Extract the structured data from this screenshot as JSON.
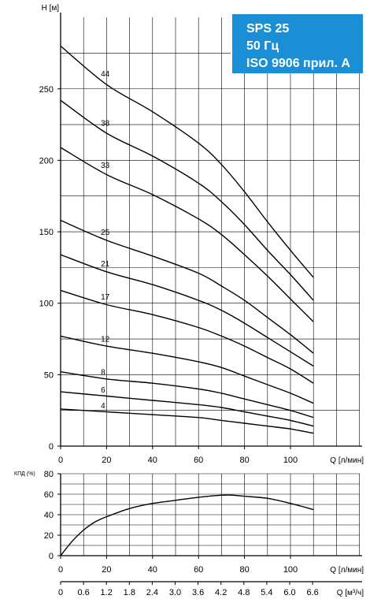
{
  "title_box": {
    "lines": [
      "SPS 25",
      "50 Гц",
      "ISO 9906 прил. А"
    ],
    "background": "#1a8fd6",
    "text_color": "#ffffff"
  },
  "chart_data": [
    {
      "type": "line",
      "title": "",
      "ylabel": "H [м]",
      "xlabel": "Q [л/мин]",
      "xlim": [
        0,
        120
      ],
      "ylim": [
        0,
        300
      ],
      "xticks": [
        0,
        20,
        40,
        60,
        80,
        100
      ],
      "yticks": [
        0,
        50,
        100,
        150,
        200,
        250
      ],
      "grid": true,
      "legend": "none",
      "series": [
        {
          "name": "44",
          "x": [
            0,
            20,
            40,
            60,
            70,
            80,
            90,
            100,
            110
          ],
          "y": [
            280,
            253,
            234,
            212,
            197,
            178,
            157,
            137,
            118
          ]
        },
        {
          "name": "38",
          "x": [
            0,
            20,
            40,
            60,
            70,
            80,
            90,
            100,
            110
          ],
          "y": [
            242,
            219,
            203,
            184,
            171,
            155,
            137,
            120,
            102
          ]
        },
        {
          "name": "33",
          "x": [
            0,
            20,
            40,
            60,
            70,
            80,
            90,
            100,
            110
          ],
          "y": [
            209,
            190,
            176,
            159,
            148,
            134,
            119,
            103,
            87
          ]
        },
        {
          "name": "25",
          "x": [
            0,
            20,
            40,
            60,
            70,
            80,
            90,
            100,
            110
          ],
          "y": [
            158,
            144,
            133,
            121,
            112,
            102,
            90,
            78,
            65
          ]
        },
        {
          "name": "21",
          "x": [
            0,
            20,
            40,
            60,
            70,
            80,
            90,
            100,
            110
          ],
          "y": [
            134,
            122,
            113,
            102,
            95,
            86,
            76,
            66,
            56
          ]
        },
        {
          "name": "17",
          "x": [
            0,
            20,
            40,
            60,
            70,
            80,
            90,
            100,
            110
          ],
          "y": [
            109,
            99,
            92,
            83,
            77,
            70,
            62,
            54,
            44
          ]
        },
        {
          "name": "12",
          "x": [
            0,
            20,
            40,
            60,
            70,
            80,
            90,
            100,
            110
          ],
          "y": [
            77,
            70,
            65,
            59,
            55,
            49,
            43,
            37,
            30
          ]
        },
        {
          "name": "8",
          "x": [
            0,
            20,
            40,
            60,
            70,
            80,
            90,
            100,
            110
          ],
          "y": [
            52,
            47,
            44,
            40,
            37,
            33,
            29,
            25,
            20
          ]
        },
        {
          "name": "6",
          "x": [
            0,
            20,
            40,
            60,
            70,
            80,
            90,
            100,
            110
          ],
          "y": [
            38,
            35,
            32,
            29,
            27,
            24,
            21,
            18,
            14
          ]
        },
        {
          "name": "4",
          "x": [
            0,
            20,
            40,
            60,
            70,
            80,
            90,
            100,
            110
          ],
          "y": [
            26,
            24,
            22,
            20,
            18,
            16,
            14,
            12,
            9
          ]
        }
      ]
    },
    {
      "type": "line",
      "title": "",
      "ylabel": "КПД (%)",
      "xlabel": "Q [л/мин]",
      "xlim": [
        0,
        120
      ],
      "ylim": [
        0,
        80
      ],
      "xticks": [
        0,
        20,
        40,
        60,
        80,
        100
      ],
      "yticks": [
        0,
        20,
        40,
        60,
        80
      ],
      "grid": true,
      "series": [
        {
          "x": [
            0,
            5,
            10,
            15,
            20,
            30,
            40,
            50,
            60,
            70,
            75,
            80,
            90,
            100,
            110
          ],
          "y": [
            0,
            14,
            25,
            33,
            38,
            46,
            51,
            54,
            57,
            59,
            59,
            58,
            56,
            51,
            45
          ]
        }
      ]
    },
    {
      "type": "axis",
      "xlabel": "Q [м³/ч]",
      "xlim": [
        0,
        7.2
      ],
      "xticks": [
        "0",
        "0.6",
        "1.2",
        "1.8",
        "2.4",
        "3.0",
        "3.6",
        "4.2",
        "4.8",
        "5.4",
        "6.0",
        "6.6"
      ]
    }
  ]
}
